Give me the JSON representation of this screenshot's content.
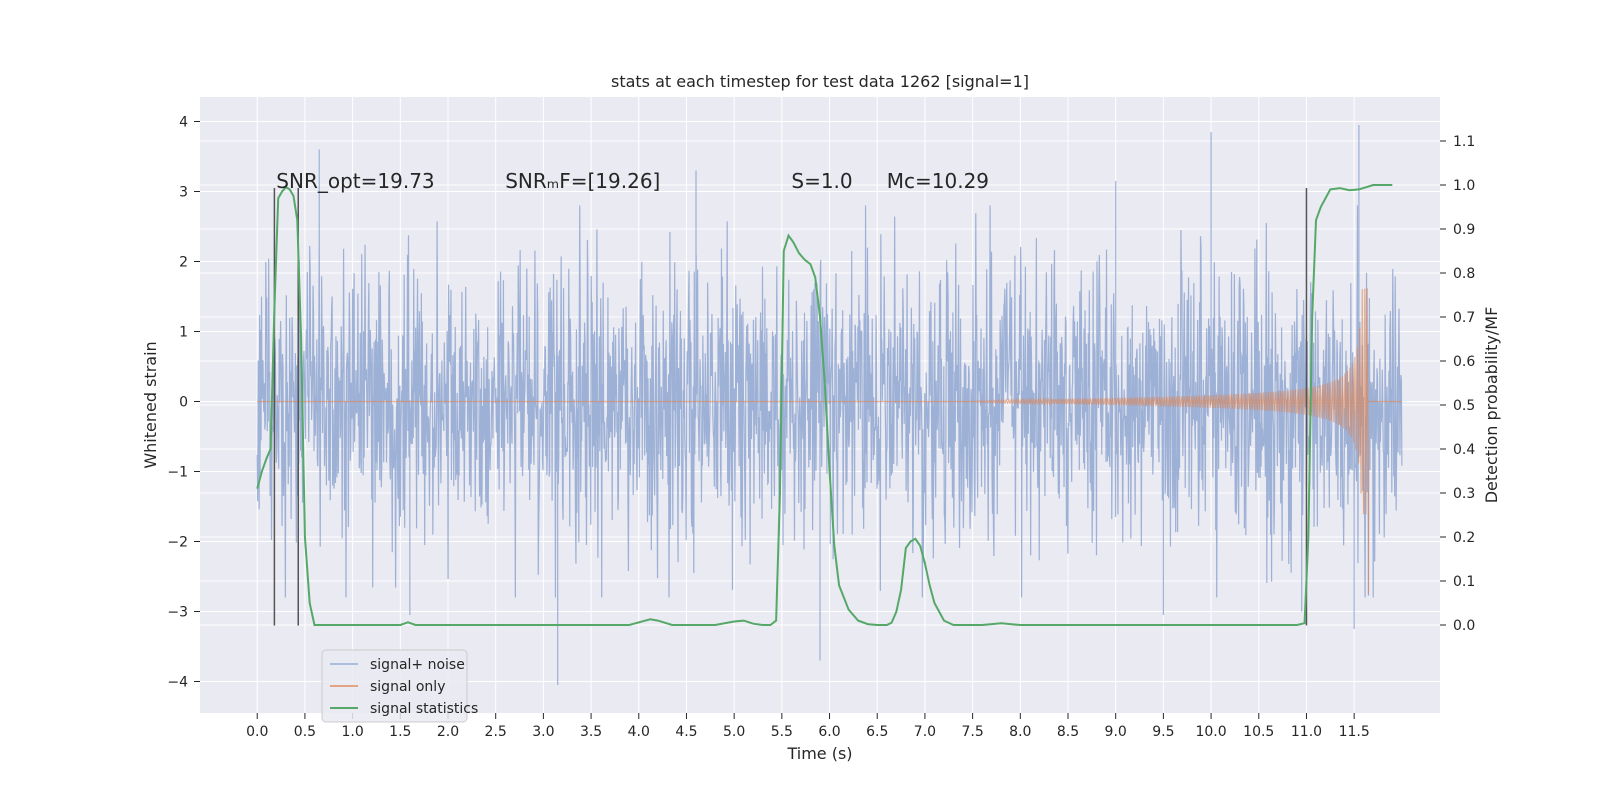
{
  "chart_data": {
    "type": "line",
    "title": "stats at each timestep for test data 1262 [signal=1]",
    "xlabel": "Time (s)",
    "ylabel": "Whitened strain",
    "y2label": "Detection probability/MF",
    "xlim": [
      -0.6,
      12.4
    ],
    "ylim": [
      -4.45,
      4.35
    ],
    "y2lim": [
      -0.2,
      1.2
    ],
    "x_ticks": [
      0.0,
      0.5,
      1.0,
      1.5,
      2.0,
      2.5,
      3.0,
      3.5,
      4.0,
      4.5,
      5.0,
      5.5,
      6.0,
      6.5,
      7.0,
      7.5,
      8.0,
      8.5,
      9.0,
      9.5,
      10.0,
      10.5,
      11.0,
      11.5
    ],
    "x_tick_labels": [
      "0.0",
      "0.5",
      "1.0",
      "1.5",
      "2.0",
      "2.5",
      "3.0",
      "3.5",
      "4.0",
      "4.5",
      "5.0",
      "5.5",
      "6.0",
      "6.5",
      "7.0",
      "7.5",
      "8.0",
      "8.5",
      "9.0",
      "9.5",
      "10.0",
      "10.5",
      "11.0",
      "11.5"
    ],
    "y_ticks": [
      -4,
      -3,
      -2,
      -1,
      0,
      1,
      2,
      3,
      4
    ],
    "y_tick_labels": [
      "−4",
      "−3",
      "−2",
      "−1",
      "0",
      "1",
      "2",
      "3",
      "4"
    ],
    "y2_ticks": [
      0.0,
      0.1,
      0.2,
      0.3,
      0.4,
      0.5,
      0.6,
      0.7,
      0.8,
      0.9,
      1.0,
      1.1
    ],
    "y2_tick_labels": [
      "0.0",
      "0.1",
      "0.2",
      "0.3",
      "0.4",
      "0.5",
      "0.6",
      "0.7",
      "0.8",
      "0.9",
      "1.0",
      "1.1"
    ],
    "grid": true,
    "legend_position": "lower-left",
    "annotations": [
      {
        "text": "SNR_opt=19.73",
        "x": 0.2,
        "y": 3.05
      },
      {
        "text": "SNRₘF=[19.26]",
        "x": 2.6,
        "y": 3.05
      },
      {
        "text": "S=1.0",
        "x": 5.6,
        "y": 3.05
      },
      {
        "text": "Mᴄ=10.29",
        "x": 6.6,
        "y": 3.05
      }
    ],
    "vlines": [
      {
        "x": 0.18,
        "ymin": -3.2,
        "ymax": 3.05
      },
      {
        "x": 0.43,
        "ymin": -3.2,
        "ymax": 3.05
      },
      {
        "x": 11.0,
        "ymin": -3.2,
        "ymax": 3.05
      }
    ],
    "series": [
      {
        "name": "signal+ noise",
        "color": "#8fa6d0",
        "axis": "left",
        "x_range": [
          0.0,
          12.0
        ],
        "envelope_typical": 1.9,
        "peaks": [
          {
            "x": 0.65,
            "y": 3.6
          },
          {
            "x": 3.15,
            "y": -4.05
          },
          {
            "x": 5.9,
            "y": -3.7
          },
          {
            "x": 10.0,
            "y": 3.85
          },
          {
            "x": 11.55,
            "y": 3.95
          },
          {
            "x": 4.6,
            "y": 3.3
          },
          {
            "x": 9.0,
            "y": 3.15
          },
          {
            "x": 1.6,
            "y": -3.05
          },
          {
            "x": 9.5,
            "y": -3.05
          },
          {
            "x": 11.5,
            "y": -3.25
          },
          {
            "x": 10.95,
            "y": -3.0
          }
        ]
      },
      {
        "name": "signal only",
        "color": "#dd8452",
        "axis": "left",
        "chirp": {
          "start_x": 7.5,
          "peak_x": 11.6,
          "end_x": 11.65,
          "peak_amp": 2.65,
          "trough_amp": -2.75
        }
      },
      {
        "name": "signal statistics",
        "color": "#55a868",
        "axis": "right",
        "x": [
          0.0,
          0.05,
          0.1,
          0.14,
          0.18,
          0.22,
          0.26,
          0.3,
          0.34,
          0.38,
          0.42,
          0.46,
          0.5,
          0.55,
          0.6,
          0.65,
          0.8,
          1.0,
          1.3,
          1.5,
          1.58,
          1.66,
          1.8,
          2.5,
          3.0,
          3.5,
          3.9,
          4.05,
          4.12,
          4.2,
          4.35,
          4.8,
          5.0,
          5.1,
          5.2,
          5.3,
          5.38,
          5.44,
          5.48,
          5.52,
          5.57,
          5.62,
          5.68,
          5.74,
          5.8,
          5.85,
          5.9,
          5.95,
          6.0,
          6.05,
          6.1,
          6.2,
          6.3,
          6.4,
          6.5,
          6.55,
          6.6,
          6.65,
          6.7,
          6.75,
          6.8,
          6.85,
          6.9,
          6.95,
          7.0,
          7.05,
          7.1,
          7.2,
          7.3,
          7.6,
          7.8,
          8.0,
          9.0,
          10.0,
          10.5,
          10.9,
          10.98,
          11.02,
          11.06,
          11.1,
          11.15,
          11.25,
          11.35,
          11.45,
          11.55,
          11.7,
          11.9
        ],
        "y": [
          0.31,
          0.35,
          0.38,
          0.4,
          0.72,
          0.97,
          0.985,
          0.995,
          0.99,
          0.975,
          0.92,
          0.65,
          0.2,
          0.05,
          0.0,
          0.0,
          0.0,
          0.0,
          0.0,
          0.0,
          0.006,
          0.0,
          0.0,
          0.0,
          0.0,
          0.0,
          0.0,
          0.009,
          0.013,
          0.01,
          0.0,
          0.0,
          0.008,
          0.01,
          0.003,
          0.0,
          0.0,
          0.01,
          0.3,
          0.85,
          0.885,
          0.87,
          0.845,
          0.83,
          0.82,
          0.79,
          0.7,
          0.55,
          0.35,
          0.18,
          0.09,
          0.035,
          0.01,
          0.002,
          0.0,
          0.0,
          0.0,
          0.005,
          0.03,
          0.08,
          0.175,
          0.19,
          0.196,
          0.18,
          0.14,
          0.09,
          0.05,
          0.01,
          0.0,
          0.0,
          0.004,
          0.0,
          0.0,
          0.0,
          0.0,
          0.0,
          0.004,
          0.2,
          0.7,
          0.92,
          0.95,
          0.99,
          0.993,
          0.988,
          0.99,
          1.0,
          1.0
        ]
      }
    ]
  }
}
